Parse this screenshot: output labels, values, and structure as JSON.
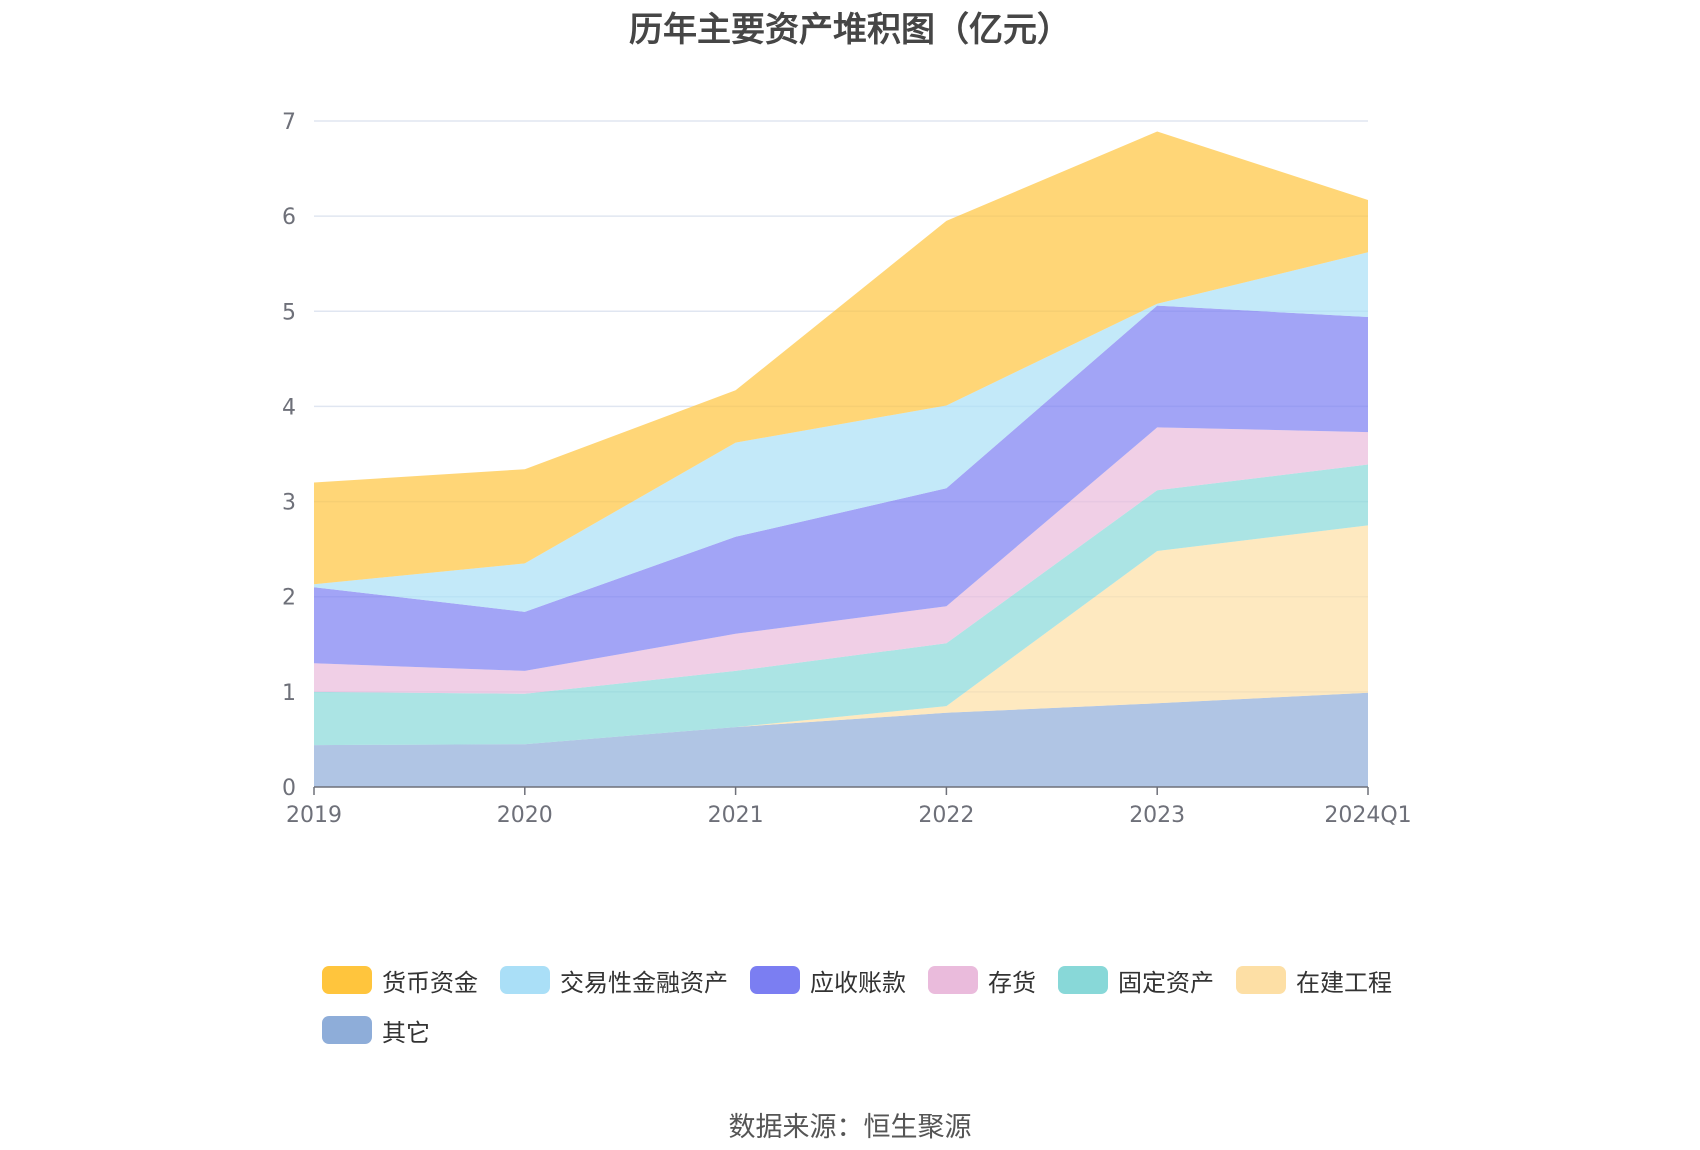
{
  "title": "历年主要资产堆积图（亿元）",
  "source": "数据来源：恒生聚源",
  "chart_data": {
    "type": "area",
    "stacked": true,
    "categories": [
      "2019",
      "2020",
      "2021",
      "2022",
      "2023",
      "2024Q1"
    ],
    "ylim": [
      0,
      7
    ],
    "yticks": [
      "0",
      "1",
      "2",
      "3",
      "4",
      "5",
      "6",
      "7"
    ],
    "grid": true,
    "legend_position": "bottom",
    "series": [
      {
        "name": "其它",
        "color": "#8eadd9",
        "values": [
          0.44,
          0.45,
          0.63,
          0.78,
          0.88,
          0.99
        ]
      },
      {
        "name": "在建工程",
        "color": "#fddfa5",
        "values": [
          0.0,
          0.0,
          0.0,
          0.07,
          1.6,
          1.76
        ]
      },
      {
        "name": "固定资产",
        "color": "#88d8d8",
        "values": [
          0.56,
          0.53,
          0.59,
          0.66,
          0.64,
          0.64
        ]
      },
      {
        "name": "存货",
        "color": "#eabbdc",
        "values": [
          0.3,
          0.24,
          0.39,
          0.39,
          0.66,
          0.34
        ]
      },
      {
        "name": "应收账款",
        "color": "#7b7ef2",
        "values": [
          0.8,
          0.62,
          1.02,
          1.24,
          1.28,
          1.21
        ]
      },
      {
        "name": "交易性金融资产",
        "color": "#aadff7",
        "values": [
          0.03,
          0.51,
          0.99,
          0.87,
          0.02,
          0.68
        ]
      },
      {
        "name": "货币资金",
        "color": "#ffc53d",
        "values": [
          1.07,
          0.99,
          0.55,
          1.94,
          1.81,
          0.55
        ]
      }
    ]
  },
  "legend_order": [
    6,
    5,
    4,
    3,
    2,
    1,
    0
  ]
}
